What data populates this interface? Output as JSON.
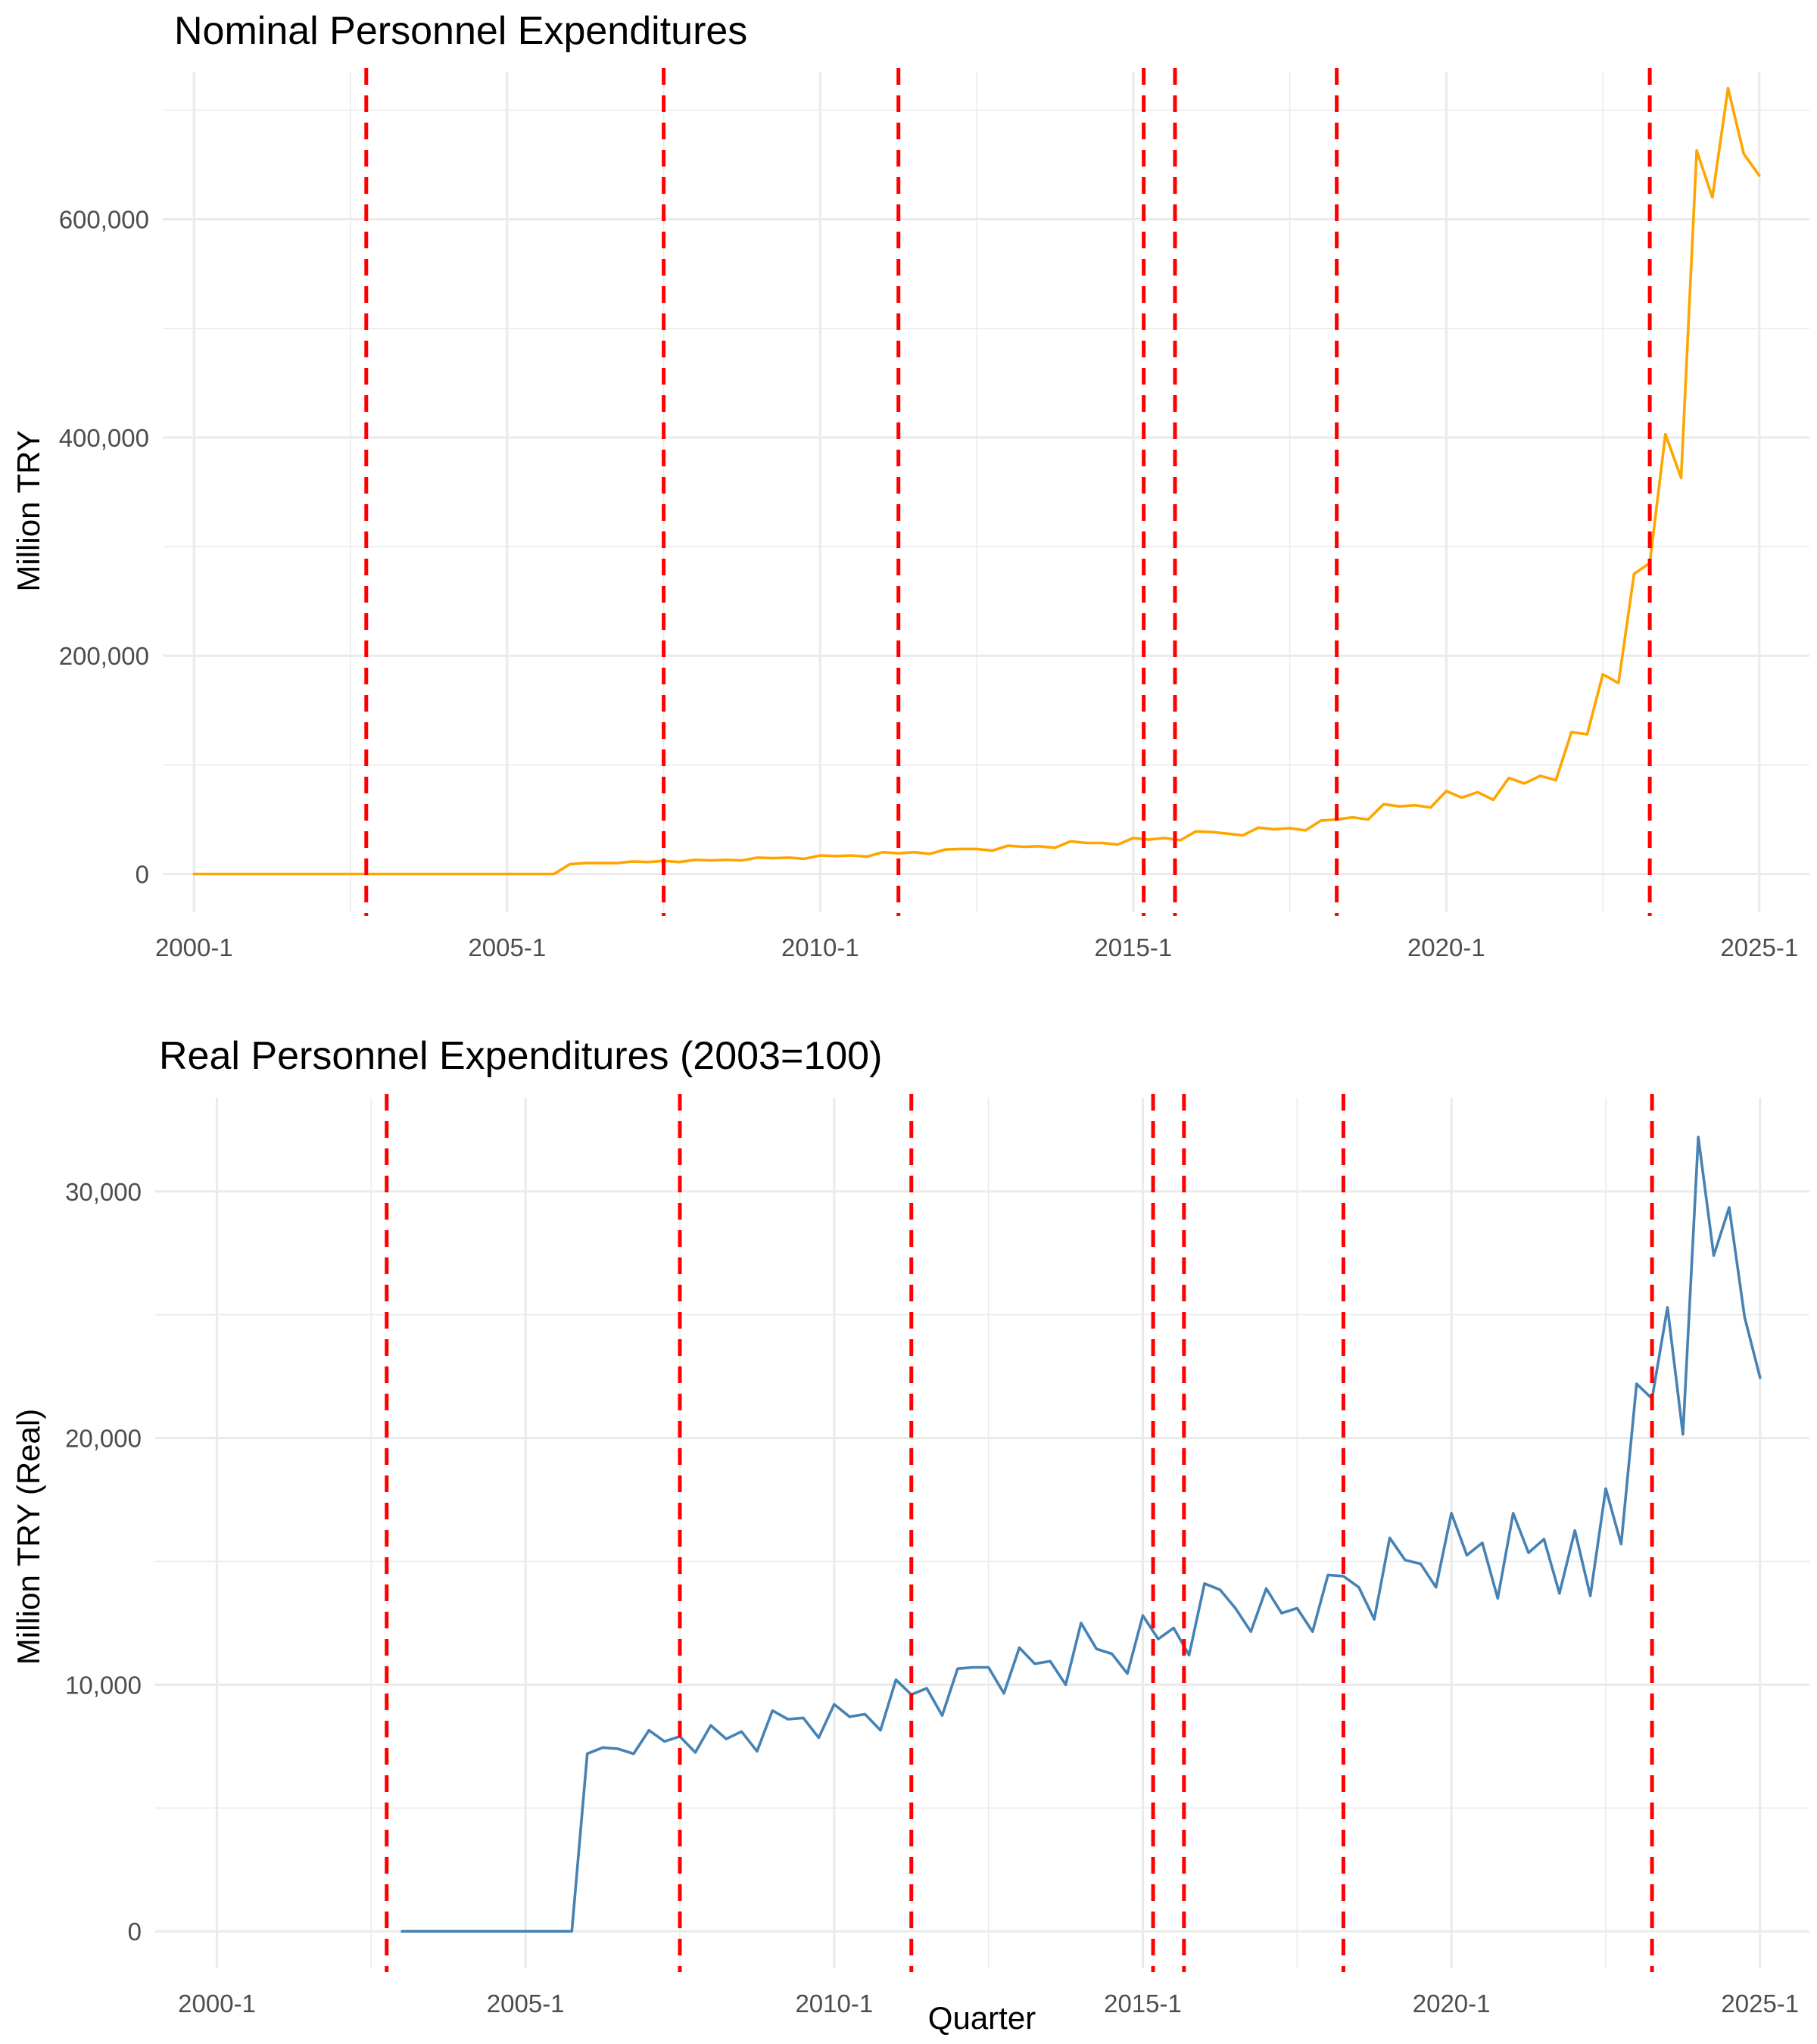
{
  "chart_data": [
    {
      "type": "line",
      "title": "Nominal Personnel Expenditures",
      "xlabel": "",
      "ylabel": "Million TRY",
      "x_ticks": [
        "2000-1",
        "2005-1",
        "2010-1",
        "2015-1",
        "2020-1",
        "2025-1"
      ],
      "y_ticks": [
        "0",
        "200,000",
        "400,000",
        "600,000"
      ],
      "xlim": [
        1999.5,
        2025.8
      ],
      "ylim": [
        -35000,
        735000
      ],
      "grid": true,
      "line_color": "#FFA500",
      "vlines": [
        2002.75,
        2007.5,
        2011.25,
        2015.167,
        2015.667,
        2018.25,
        2023.25
      ],
      "vline_color": "#FF0000",
      "series": [
        {
          "x": [
            2000.0,
            2000.25,
            2000.5,
            2000.75,
            2001.0,
            2001.25,
            2001.5,
            2001.75,
            2002.0,
            2002.25,
            2002.5,
            2002.75,
            2003.0,
            2003.25,
            2003.5,
            2003.75,
            2004.0,
            2004.25,
            2004.5,
            2004.75,
            2005.0,
            2005.25,
            2005.5,
            2005.75,
            2006.0,
            2006.25,
            2006.5,
            2006.75,
            2007.0,
            2007.25,
            2007.5,
            2007.75,
            2008.0,
            2008.25,
            2008.5,
            2008.75,
            2009.0,
            2009.25,
            2009.5,
            2009.75,
            2010.0,
            2010.25,
            2010.5,
            2010.75,
            2011.0,
            2011.25,
            2011.5,
            2011.75,
            2012.0,
            2012.25,
            2012.5,
            2012.75,
            2013.0,
            2013.25,
            2013.5,
            2013.75,
            2014.0,
            2014.25,
            2014.5,
            2014.75,
            2015.0,
            2015.25,
            2015.5,
            2015.75,
            2016.0,
            2016.25,
            2016.5,
            2016.75,
            2017.0,
            2017.25,
            2017.5,
            2017.75,
            2018.0,
            2018.25,
            2018.5,
            2018.75,
            2019.0,
            2019.25,
            2019.5,
            2019.75,
            2020.0,
            2020.25,
            2020.5,
            2020.75,
            2021.0,
            2021.25,
            2021.5,
            2021.75,
            2022.0,
            2022.25,
            2022.5,
            2022.75,
            2023.0,
            2023.25,
            2023.5,
            2023.75,
            2024.0,
            2024.25,
            2024.5,
            2024.75,
            2025.0
          ],
          "values": [
            0,
            0,
            0,
            0,
            0,
            0,
            0,
            0,
            0,
            0,
            0,
            0,
            0,
            0,
            0,
            0,
            0,
            0,
            0,
            0,
            0,
            0,
            0,
            0,
            9000,
            10000,
            10000,
            10000,
            11500,
            11000,
            12000,
            11000,
            13000,
            12500,
            13000,
            12500,
            15000,
            14500,
            15000,
            14000,
            17000,
            16500,
            17000,
            16000,
            20000,
            19000,
            20000,
            18500,
            22500,
            23000,
            23000,
            21500,
            26000,
            25000,
            25500,
            24000,
            30000,
            28500,
            28500,
            27000,
            33000,
            31500,
            33000,
            31000,
            39000,
            38500,
            37000,
            35500,
            42500,
            41000,
            42000,
            40000,
            49000,
            50000,
            52000,
            50000,
            64000,
            62000,
            63000,
            61000,
            76000,
            70000,
            75000,
            68000,
            88000,
            83000,
            90000,
            86000,
            130000,
            128000,
            183000,
            175000,
            275000,
            285000,
            403000,
            363000,
            663000,
            620000,
            720000,
            660000,
            640000
          ]
        }
      ]
    },
    {
      "type": "line",
      "title": "Real Personnel Expenditures (2003=100)",
      "xlabel": "Quarter",
      "ylabel": "Million TRY (Real)",
      "x_ticks": [
        "2000-1",
        "2005-1",
        "2010-1",
        "2015-1",
        "2020-1",
        "2025-1"
      ],
      "y_ticks": [
        "0",
        "10,000",
        "20,000",
        "30,000"
      ],
      "xlim": [
        1999.0,
        2025.8
      ],
      "ylim": [
        -1500,
        33800
      ],
      "grid": true,
      "line_color": "#4682B4",
      "vlines": [
        2002.75,
        2007.5,
        2011.25,
        2015.167,
        2015.667,
        2018.25,
        2023.25
      ],
      "vline_color": "#FF0000",
      "series": [
        {
          "x": [
            2003.0,
            2003.25,
            2003.5,
            2003.75,
            2004.0,
            2004.25,
            2004.5,
            2004.75,
            2005.0,
            2005.25,
            2005.5,
            2005.75,
            2006.0,
            2006.25,
            2006.5,
            2006.75,
            2007.0,
            2007.25,
            2007.5,
            2007.75,
            2008.0,
            2008.25,
            2008.5,
            2008.75,
            2009.0,
            2009.25,
            2009.5,
            2009.75,
            2010.0,
            2010.25,
            2010.5,
            2010.75,
            2011.0,
            2011.25,
            2011.5,
            2011.75,
            2012.0,
            2012.25,
            2012.5,
            2012.75,
            2013.0,
            2013.25,
            2013.5,
            2013.75,
            2014.0,
            2014.25,
            2014.5,
            2014.75,
            2015.0,
            2015.25,
            2015.5,
            2015.75,
            2016.0,
            2016.25,
            2016.5,
            2016.75,
            2017.0,
            2017.25,
            2017.5,
            2017.75,
            2018.0,
            2018.25,
            2018.5,
            2018.75,
            2019.0,
            2019.25,
            2019.5,
            2019.75,
            2020.0,
            2020.25,
            2020.5,
            2020.75,
            2021.0,
            2021.25,
            2021.5,
            2021.75,
            2022.0,
            2022.25,
            2022.5,
            2022.75,
            2023.0,
            2023.25,
            2023.5,
            2023.75,
            2024.0,
            2024.25,
            2024.5,
            2024.75,
            2025.0
          ],
          "values": [
            0,
            0,
            0,
            0,
            0,
            0,
            0,
            0,
            0,
            0,
            0,
            0,
            7200,
            7450,
            7400,
            7200,
            8150,
            7700,
            7900,
            7250,
            8350,
            7800,
            8100,
            7300,
            8950,
            8600,
            8650,
            7850,
            9200,
            8700,
            8800,
            8150,
            10200,
            9600,
            9850,
            8750,
            10650,
            10700,
            10700,
            9650,
            11500,
            10850,
            10950,
            10000,
            12500,
            11450,
            11250,
            10450,
            12800,
            11850,
            12300,
            11200,
            14100,
            13850,
            13100,
            12150,
            13900,
            12900,
            13100,
            12150,
            14450,
            14400,
            13950,
            12650,
            15950,
            15050,
            14900,
            13950,
            16950,
            15250,
            15750,
            13500,
            16950,
            15350,
            15900,
            13700,
            16250,
            13600,
            17950,
            15700,
            22200,
            21600,
            25300,
            20150,
            32200,
            27400,
            29350,
            24900,
            22450
          ]
        }
      ]
    }
  ]
}
